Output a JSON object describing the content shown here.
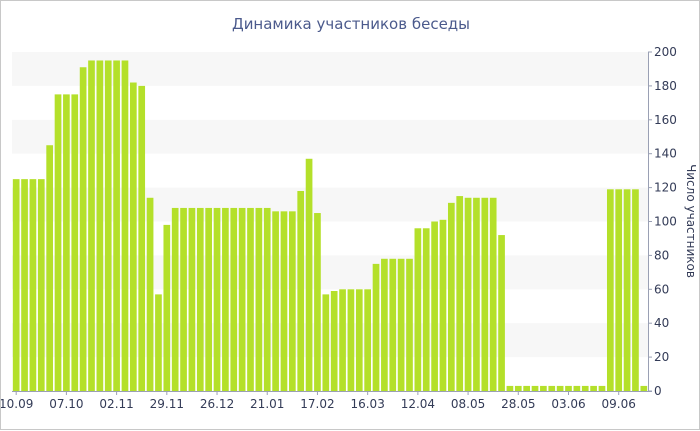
{
  "chart_data": {
    "type": "bar",
    "title": "Динамика участников беседы",
    "ylabel": "Число участников",
    "xlabel": "",
    "ylim": [
      0,
      200
    ],
    "y_ticks": [
      0,
      20,
      40,
      60,
      80,
      100,
      120,
      140,
      160,
      180,
      200
    ],
    "y_axis_side": "right",
    "grid": "alternating horizontal bands",
    "bar_color": "#b4e02a",
    "band_color": "#f7f7f7",
    "x_tick_labels": [
      {
        "label": "10.09",
        "index": 0
      },
      {
        "label": "07.10",
        "index": 6
      },
      {
        "label": "02.11",
        "index": 12
      },
      {
        "label": "29.11",
        "index": 18
      },
      {
        "label": "26.12",
        "index": 24
      },
      {
        "label": "21.01",
        "index": 30
      },
      {
        "label": "17.02",
        "index": 36
      },
      {
        "label": "16.03",
        "index": 42
      },
      {
        "label": "12.04",
        "index": 48
      },
      {
        "label": "08.05",
        "index": 54
      },
      {
        "label": "28.05",
        "index": 60
      },
      {
        "label": "03.06",
        "index": 66
      },
      {
        "label": "09.06",
        "index": 72
      }
    ],
    "values": [
      125,
      125,
      125,
      125,
      145,
      175,
      175,
      175,
      191,
      195,
      195,
      195,
      195,
      195,
      182,
      180,
      114,
      57,
      98,
      108,
      108,
      108,
      108,
      108,
      108,
      108,
      108,
      108,
      108,
      108,
      108,
      106,
      106,
      106,
      118,
      137,
      105,
      57,
      59,
      60,
      60,
      60,
      60,
      75,
      78,
      78,
      78,
      78,
      96,
      96,
      100,
      101,
      111,
      115,
      114,
      114,
      114,
      114,
      92,
      3,
      3,
      3,
      3,
      3,
      3,
      3,
      3,
      3,
      3,
      3,
      3,
      119,
      119,
      119,
      119,
      3
    ]
  }
}
